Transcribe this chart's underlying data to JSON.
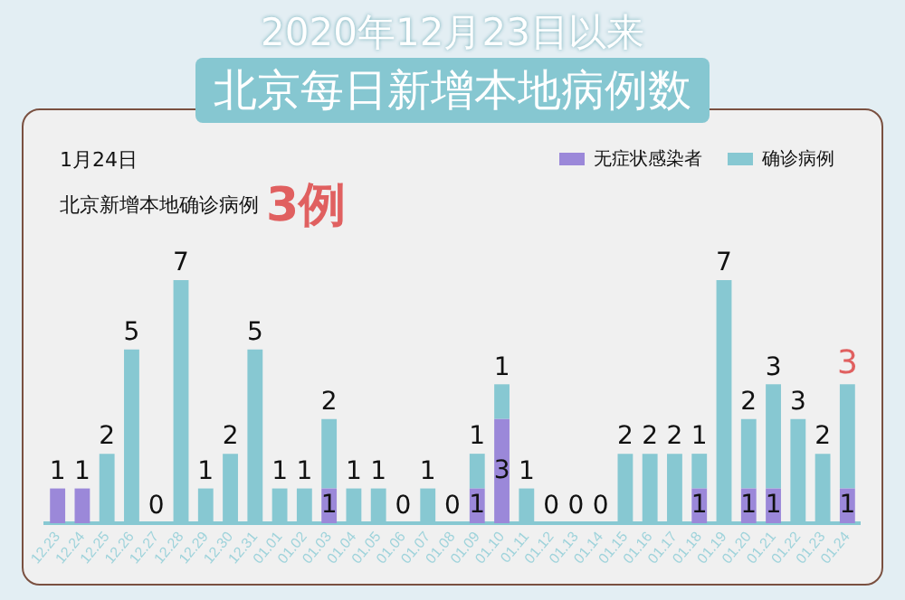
{
  "chart_data": {
    "type": "bar",
    "title": "2020年12月23日以来",
    "subtitle": "北京每日新增本地病例数",
    "categories": [
      "12.23",
      "12.24",
      "12.25",
      "12.26",
      "12.27",
      "12.28",
      "12.29",
      "12.30",
      "12.31",
      "01.01",
      "01.02",
      "01.03",
      "01.04",
      "01.05",
      "01.06",
      "01.07",
      "01.08",
      "01.09",
      "01.10",
      "01.11",
      "01.12",
      "01.13",
      "01.14",
      "01.15",
      "01.16",
      "01.17",
      "01.18",
      "01.19",
      "01.20",
      "01.21",
      "01.22",
      "01.23",
      "01.24"
    ],
    "stacked": true,
    "series": [
      {
        "name": "无症状感染者",
        "color": "#9b88d9",
        "values": [
          1,
          1,
          0,
          0,
          0,
          0,
          0,
          0,
          0,
          0,
          0,
          1,
          0,
          0,
          0,
          0,
          0,
          1,
          3,
          0,
          0,
          0,
          0,
          0,
          0,
          0,
          1,
          0,
          1,
          1,
          0,
          0,
          1
        ],
        "value_labels": [
          "1",
          "1",
          null,
          null,
          null,
          null,
          null,
          null,
          null,
          null,
          null,
          "1",
          null,
          null,
          null,
          null,
          null,
          "1",
          "3",
          null,
          null,
          null,
          null,
          null,
          null,
          null,
          "1",
          null,
          "1",
          "1",
          null,
          null,
          "1"
        ]
      },
      {
        "name": "确诊病例",
        "color": "#87c8d2",
        "values": [
          0,
          0,
          2,
          5,
          0,
          7,
          1,
          2,
          5,
          1,
          1,
          2,
          1,
          1,
          0,
          1,
          0,
          1,
          1,
          1,
          0,
          0,
          0,
          2,
          2,
          2,
          1,
          7,
          2,
          3,
          3,
          2,
          3
        ],
        "value_labels": [
          null,
          null,
          "2",
          "5",
          "0",
          "7",
          "1",
          "2",
          "5",
          "1",
          "1",
          "2",
          "1",
          "1",
          "0",
          "1",
          "0",
          "1",
          "1",
          "1",
          "0",
          "0",
          "0",
          "2",
          "2",
          "2",
          "1",
          "7",
          "2",
          "3",
          "3",
          "2",
          null
        ]
      }
    ],
    "annotations": [
      "1月24日",
      "北京新增本地确诊病例",
      "3例",
      {
        "text": "3",
        "x": "01.24",
        "y": 4
      }
    ],
    "tick_labels": "x",
    "grid": false,
    "legend": "top right"
  }
}
